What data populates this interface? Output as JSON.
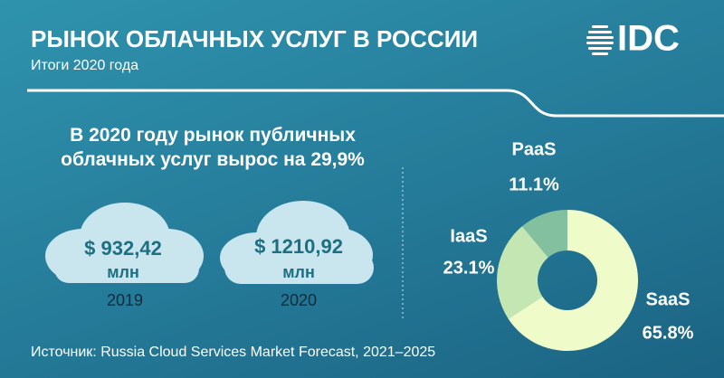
{
  "header": {
    "title": "РЫНОК ОБЛАЧНЫХ УСЛУГ В РОССИИ",
    "subtitle": "Итоги 2020 года"
  },
  "logo": "IDC",
  "headline": "В 2020 году рынок публичных облачных услуг вырос на 29,9%",
  "clouds": [
    {
      "value": "$ 932,42",
      "unit": "млн",
      "year": "2019"
    },
    {
      "value": "$ 1210,92",
      "unit": "млн",
      "year": "2020"
    }
  ],
  "source": "Источник: Russia Cloud Services Market Forecast, 2021–2025",
  "chart_data": {
    "type": "pie",
    "donut": true,
    "categories": [
      "PaaS",
      "IaaS",
      "SaaS"
    ],
    "values": [
      11.1,
      23.1,
      65.8
    ],
    "value_labels": [
      "11.1%",
      "23.1%",
      "65.8%"
    ],
    "colors": [
      "#82c09f",
      "#c4e6b3",
      "#effcc9"
    ]
  }
}
